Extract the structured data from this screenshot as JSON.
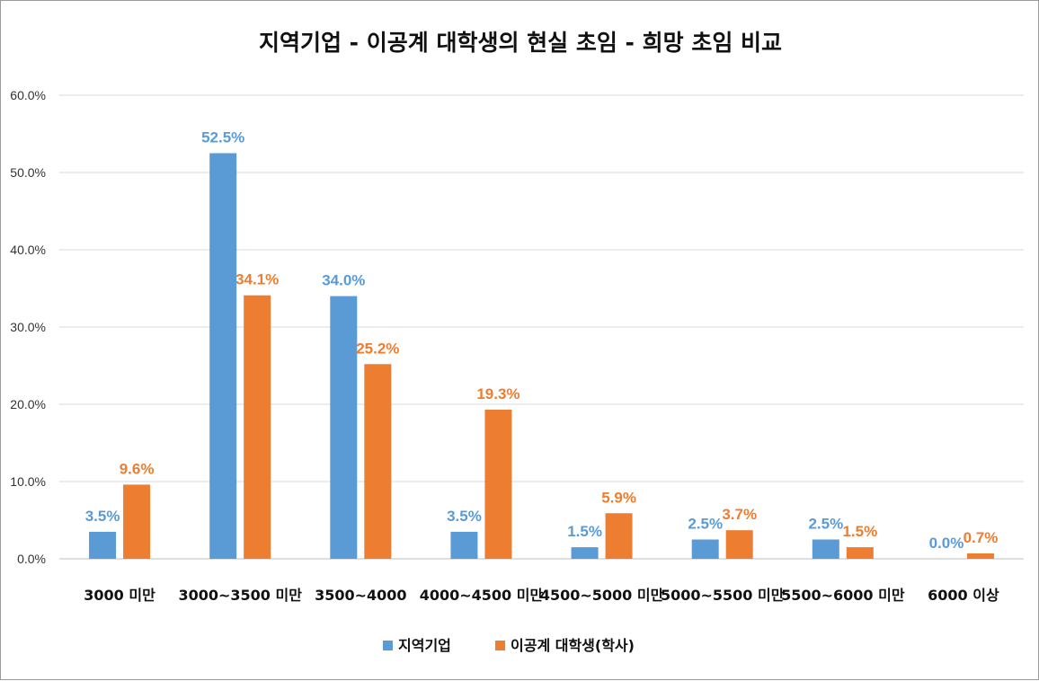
{
  "chart_data": {
    "type": "bar",
    "title": "지역기업 - 이공계 대학생의 현실 초임 - 희망 초임 비교",
    "categories": [
      "3000 미만",
      "3000~3500 미만",
      "3500~4000",
      "4000~4500 미만",
      "4500~5000 미만",
      "5000~5500 미만",
      "5500~6000 미만",
      "6000 이상"
    ],
    "series": [
      {
        "name": "지역기업",
        "color": "#5b9bd5",
        "values": [
          3.5,
          52.5,
          34.0,
          3.5,
          1.5,
          2.5,
          2.5,
          0.0
        ],
        "labels": [
          "3.5%",
          "52.5%",
          "34.0%",
          "3.5%",
          "1.5%",
          "2.5%",
          "2.5%",
          "0.0%"
        ]
      },
      {
        "name": "이공계 대학생(학사)",
        "color": "#ed7d31",
        "values": [
          9.6,
          34.1,
          25.2,
          19.3,
          5.9,
          3.7,
          1.5,
          0.7
        ],
        "labels": [
          "9.6%",
          "34.1%",
          "25.2%",
          "19.3%",
          "5.9%",
          "3.7%",
          "1.5%",
          "0.7%"
        ]
      }
    ],
    "yticks": [
      "0.0%",
      "10.0%",
      "20.0%",
      "30.0%",
      "40.0%",
      "50.0%",
      "60.0%"
    ],
    "ylim": [
      0,
      60
    ],
    "grid": true,
    "legend_position": "bottom"
  }
}
